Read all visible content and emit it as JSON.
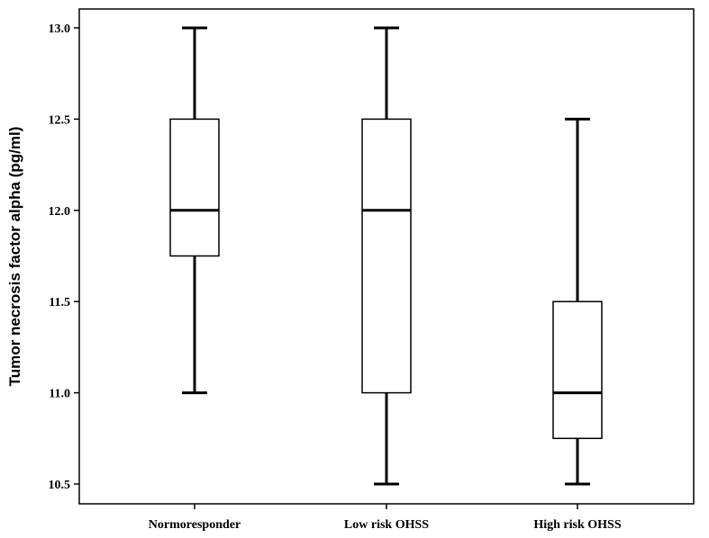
{
  "chart_data": {
    "type": "box",
    "title": "",
    "xlabel": "",
    "ylabel": "Tumor necrosis factor alpha (pg/ml)",
    "ylim": [
      10.45,
      13.05
    ],
    "yticks": [
      "10.5",
      "11.0",
      "11.5",
      "12.0",
      "12.5",
      "13.0"
    ],
    "grid": false,
    "categories": [
      "Normoresponder",
      "Low risk OHSS",
      "High risk OHSS"
    ],
    "boxes": [
      {
        "category": "Normoresponder",
        "min": 11.0,
        "q1": 11.75,
        "median": 12.0,
        "q3": 12.5,
        "max": 13.0
      },
      {
        "category": "Low risk OHSS",
        "min": 10.5,
        "q1": 11.0,
        "median": 12.0,
        "q3": 12.5,
        "max": 13.0
      },
      {
        "category": "High risk OHSS",
        "min": 10.5,
        "q1": 10.75,
        "median": 11.0,
        "q3": 11.5,
        "max": 12.5
      }
    ]
  }
}
